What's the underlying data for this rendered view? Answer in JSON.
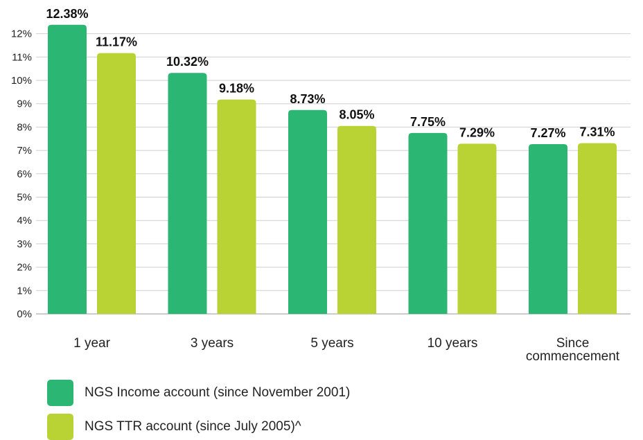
{
  "chart_data": {
    "type": "bar",
    "categories": [
      "1 year",
      "3 years",
      "5 years",
      "10 years",
      "Since commencement"
    ],
    "series": [
      {
        "name": "NGS Income account (since November 2001)",
        "values": [
          12.38,
          10.32,
          8.73,
          7.75,
          7.27
        ],
        "color": "#2bb673"
      },
      {
        "name": "NGS TTR account (since July 2005)^",
        "values": [
          11.17,
          9.18,
          8.05,
          7.29,
          7.31
        ],
        "color": "#b9d334"
      }
    ],
    "value_labels": [
      [
        "12.38%",
        "10.32%",
        "8.73%",
        "7.75%",
        "7.27%"
      ],
      [
        "11.17%",
        "9.18%",
        "8.05%",
        "7.29%",
        "7.31%"
      ]
    ],
    "y_ticks": [
      "0%",
      "1%",
      "2%",
      "3%",
      "4%",
      "5%",
      "6%",
      "7%",
      "8%",
      "9%",
      "10%",
      "11%",
      "12%"
    ],
    "ylim": [
      0,
      12.8
    ],
    "grid": true,
    "legend_position": "bottom",
    "title": "",
    "xlabel": "",
    "ylabel": ""
  }
}
